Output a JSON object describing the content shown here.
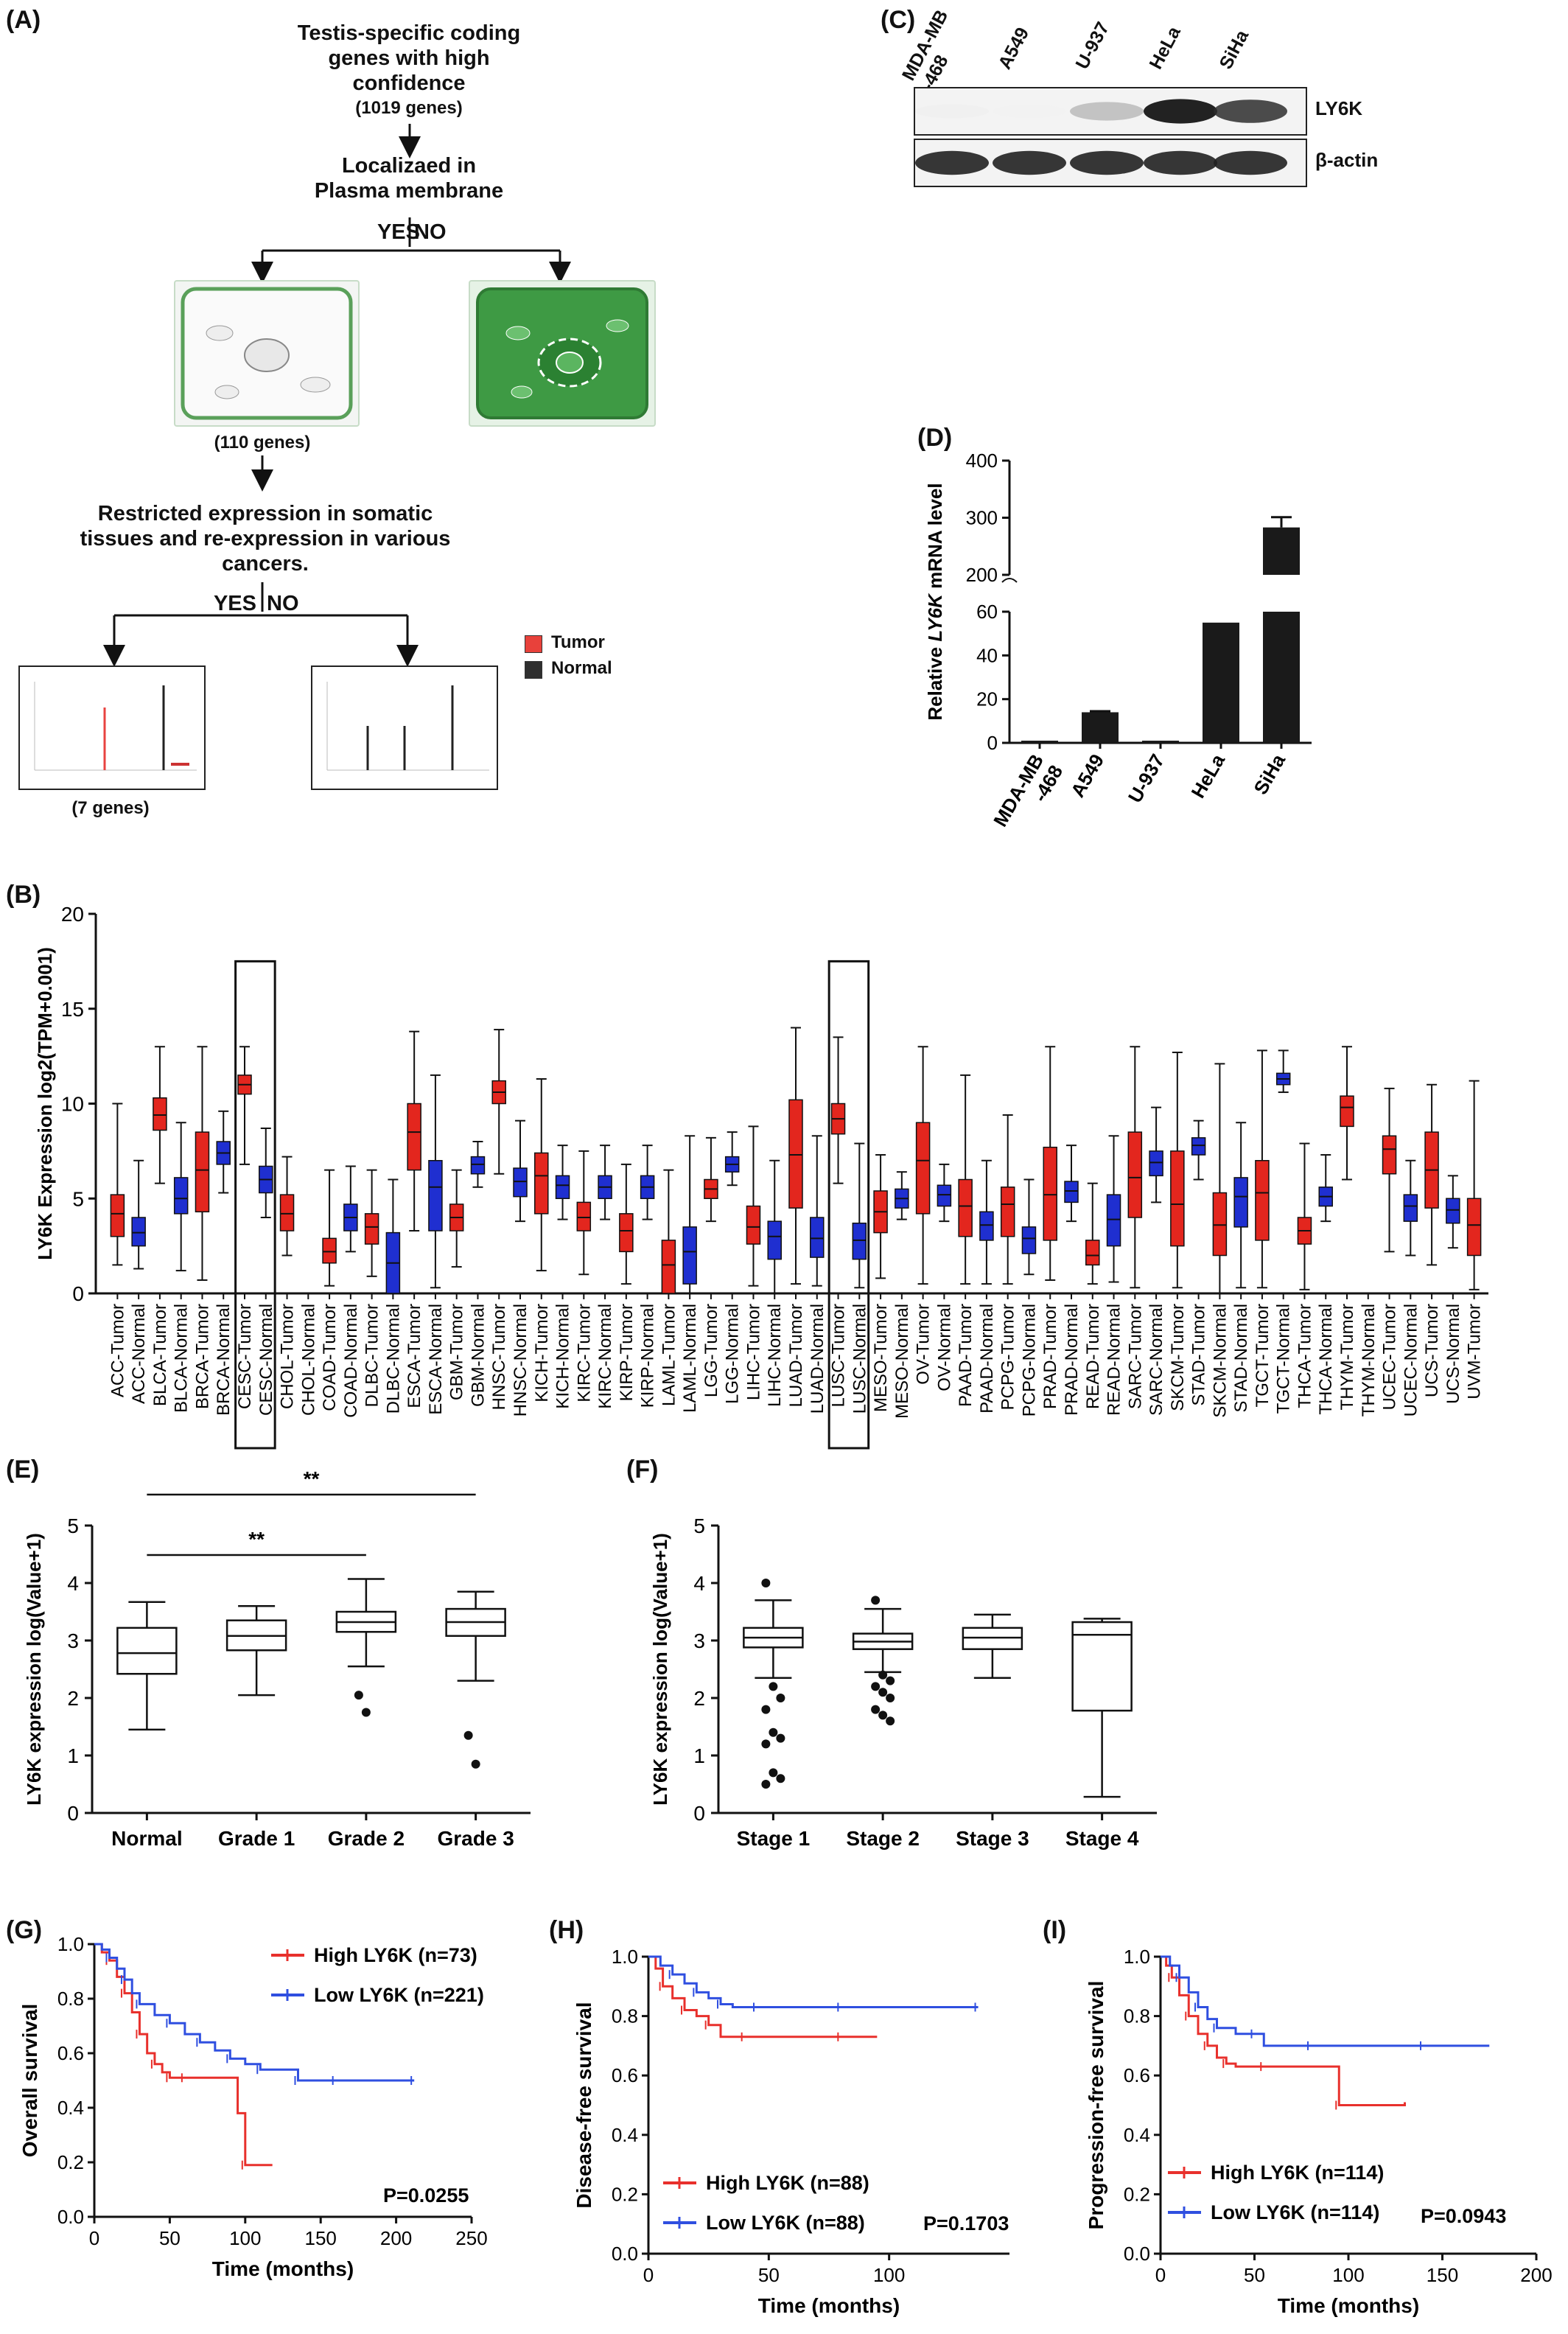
{
  "panels": {
    "A": "(A)",
    "B": "(B)",
    "C": "(C)",
    "D": "(D)",
    "E": "(E)",
    "F": "(F)",
    "G": "(G)",
    "H": "(H)",
    "I": "(I)"
  },
  "flowchart": {
    "step1_line1": "Testis-specific coding",
    "step1_line2": "genes with high",
    "step1_line3": "confidence",
    "step1_count": "(1019 genes)",
    "step2_line1": "Localizaed in",
    "step2_line2": "Plasma membrane",
    "yes": "YES",
    "no": "NO",
    "count2": "(110 genes)",
    "step3_line1": "Restricted expression in somatic",
    "step3_line2": "tissues and re-expression in various",
    "step3_line3": "cancers.",
    "count3": "(7 genes)",
    "legend_tumor": "Tumor",
    "legend_normal": "Normal",
    "tumor_color": "#e8413b",
    "normal_color": "#2f2f2f"
  },
  "western_blot": {
    "lanes": [
      "MDA-MB\n-468",
      "A549",
      "U-937",
      "HeLa",
      "SiHa"
    ],
    "lane_line1": [
      "MDA-MB",
      "A549",
      "U-937",
      "HeLa",
      "SiHa"
    ],
    "lane_line2": [
      "-468",
      "",
      "",
      "",
      ""
    ],
    "bands": [
      "LY6K",
      "β-actin"
    ],
    "ly6k_intensity": [
      0.05,
      0.0,
      0.45,
      0.95,
      0.85
    ],
    "actin_intensity": [
      0.9,
      0.9,
      0.9,
      0.9,
      0.9
    ]
  },
  "chart_data": [
    {
      "id": "D",
      "type": "bar",
      "ylabel_pre": "Relative ",
      "ylabel_italic": "LY6K",
      "ylabel_post": " mRNA level",
      "categories": [
        "MDA-MB\n-468",
        "A549",
        "U-937",
        "HeLa",
        "SiHa"
      ],
      "category_line1": [
        "MDA-MB",
        "A549",
        "U-937",
        "HeLa",
        "SiHa"
      ],
      "category_line2": [
        "-468",
        "",
        "",
        "",
        ""
      ],
      "values": [
        1,
        14,
        1,
        55,
        283
      ],
      "errors": [
        0,
        0.5,
        0,
        0,
        18
      ],
      "broken_axis": {
        "lower": [
          0,
          60
        ],
        "upper": [
          200,
          400
        ]
      },
      "lower_ticks": [
        0,
        20,
        40,
        60
      ],
      "upper_ticks": [
        200,
        300,
        400
      ],
      "bar_color": "#1a1a1a"
    },
    {
      "id": "B",
      "type": "box",
      "ylabel": "LY6K Expression log2(TPM+0.001)",
      "ylim": [
        0,
        20
      ],
      "yticks": [
        0,
        5,
        10,
        15,
        20
      ],
      "categories": [
        "ACC-Tumor",
        "ACC-Normal",
        "BLCA-Tumor",
        "BLCA-Normal",
        "BRCA-Tumor",
        "BRCA-Normal",
        "CESC-Tumor",
        "CESC-Normal",
        "CHOL-Tumor",
        "CHOL-Normal",
        "COAD-Tumor",
        "COAD-Normal",
        "DLBC-Tumor",
        "DLBC-Normal",
        "ESCA-Tumor",
        "ESCA-Normal",
        "GBM-Tumor",
        "GBM-Normal",
        "HNSC-Tumor",
        "HNSC-Normal",
        "KICH-Tumor",
        "KICH-Normal",
        "KIRC-Tumor",
        "KIRC-Normal",
        "KIRP-Tumor",
        "KIRP-Normal",
        "LAML-Tumor",
        "LAML-Normal",
        "LGG-Tumor",
        "LGG-Normal",
        "LIHC-Tumor",
        "LIHC-Normal",
        "LUAD-Tumor",
        "LUAD-Normal",
        "LUSC-Tumor",
        "LUSC-Normal",
        "MESO-Tumor",
        "MESO-Normal",
        "OV-Tumor",
        "OV-Normal",
        "PAAD-Tumor",
        "PAAD-Normal",
        "PCPG-Tumor",
        "PCPG-Normal",
        "PRAD-Tumor",
        "PRAD-Normal",
        "READ-Tumor",
        "READ-Normal",
        "SARC-Tumor",
        "SARC-Normal",
        "SKCM-Tumor",
        "STAD-Tumor",
        "SKCM-Normal",
        "STAD-Normal",
        "TGCT-Tumor",
        "TGCT-Normal",
        "THCA-Tumor",
        "THCA-Normal",
        "THYM-Tumor",
        "THYM-Normal",
        "UCEC-Tumor",
        "UCEC-Normal",
        "UCS-Tumor",
        "UCS-Normal",
        "UVM-Tumor"
      ],
      "colors": [
        "red",
        "blue",
        "red",
        "blue",
        "red",
        "blue",
        "red",
        "blue",
        "red",
        "none",
        "red",
        "blue",
        "red",
        "blue",
        "red",
        "blue",
        "red",
        "blue",
        "red",
        "blue",
        "red",
        "blue",
        "red",
        "blue",
        "red",
        "blue",
        "red",
        "blue",
        "red",
        "blue",
        "red",
        "blue",
        "red",
        "blue",
        "red",
        "blue",
        "red",
        "blue",
        "red",
        "blue",
        "red",
        "blue",
        "red",
        "blue",
        "red",
        "blue",
        "red",
        "blue",
        "red",
        "blue",
        "red",
        "blue",
        "red",
        "blue",
        "red",
        "blue",
        "red",
        "blue",
        "red",
        "none",
        "red",
        "blue",
        "red",
        "blue",
        "red"
      ],
      "medians": [
        4.2,
        3.2,
        9.4,
        5.0,
        6.5,
        7.4,
        11.0,
        6.0,
        4.2,
        0,
        2.2,
        4.0,
        3.5,
        1.6,
        8.5,
        5.6,
        4.0,
        6.8,
        10.6,
        5.9,
        6.2,
        5.7,
        4.0,
        5.6,
        3.3,
        5.6,
        1.5,
        2.2,
        5.5,
        6.8,
        3.5,
        3.0,
        7.3,
        2.9,
        9.2,
        2.8,
        4.3,
        5.0,
        7.0,
        5.2,
        4.6,
        3.6,
        4.7,
        2.9,
        5.2,
        5.4,
        2.0,
        3.9,
        6.1,
        6.9,
        4.7,
        7.8,
        3.6,
        5.1,
        5.3,
        11.3,
        3.3,
        5.1,
        9.8,
        0,
        7.6,
        4.6,
        6.5,
        4.4,
        3.6
      ],
      "q1": [
        3.0,
        2.5,
        8.6,
        4.2,
        4.3,
        6.8,
        10.5,
        5.3,
        3.3,
        0,
        1.6,
        3.3,
        2.6,
        0,
        6.5,
        3.3,
        3.3,
        6.3,
        10.0,
        5.1,
        4.2,
        5.0,
        3.3,
        5.0,
        2.2,
        5.0,
        0,
        0.5,
        5.0,
        6.4,
        2.6,
        1.8,
        4.5,
        1.9,
        8.4,
        1.8,
        3.2,
        4.5,
        4.2,
        4.6,
        3.0,
        2.8,
        3.0,
        2.1,
        2.8,
        4.8,
        1.5,
        2.5,
        4.0,
        6.2,
        2.5,
        7.3,
        2.0,
        3.5,
        2.8,
        11.0,
        2.6,
        4.6,
        8.8,
        0,
        6.3,
        3.8,
        4.5,
        3.7,
        2.0
      ],
      "q3": [
        5.2,
        4.0,
        10.3,
        6.1,
        8.5,
        8.0,
        11.5,
        6.7,
        5.2,
        0,
        2.9,
        4.7,
        4.2,
        3.2,
        10.0,
        7.0,
        4.7,
        7.2,
        11.2,
        6.6,
        7.4,
        6.2,
        4.8,
        6.2,
        4.2,
        6.2,
        2.8,
        3.5,
        6.0,
        7.2,
        4.6,
        3.8,
        10.2,
        4.0,
        10.0,
        3.7,
        5.4,
        5.5,
        9.0,
        5.7,
        6.0,
        4.3,
        5.6,
        3.5,
        7.7,
        5.9,
        2.8,
        5.2,
        8.5,
        7.5,
        7.5,
        8.2,
        5.3,
        6.1,
        7.0,
        11.6,
        4.0,
        5.6,
        10.4,
        0,
        8.3,
        5.2,
        8.5,
        5.0,
        5.0
      ],
      "mins": [
        1.5,
        1.3,
        5.8,
        1.2,
        0.7,
        5.3,
        6.8,
        4.0,
        2.0,
        0,
        0.4,
        2.2,
        0.9,
        0,
        3.3,
        0.3,
        1.4,
        5.6,
        6.3,
        3.8,
        1.2,
        3.9,
        1.0,
        3.9,
        0.5,
        3.9,
        0,
        0,
        3.8,
        5.7,
        0.4,
        0,
        0.5,
        0.4,
        5.8,
        0.3,
        0.8,
        3.9,
        0.5,
        3.8,
        0.5,
        0.5,
        0.5,
        1.0,
        0.7,
        3.8,
        0.5,
        0.6,
        0.3,
        4.8,
        0.3,
        6.0,
        0,
        0.3,
        0.3,
        10.6,
        0.2,
        3.8,
        6.0,
        0,
        2.2,
        2.0,
        1.5,
        2.4,
        0.2
      ],
      "maxs": [
        10.0,
        7.0,
        13.0,
        9.0,
        13.0,
        9.6,
        13.0,
        8.7,
        7.2,
        0,
        6.5,
        6.7,
        6.5,
        6.0,
        13.8,
        11.5,
        6.5,
        8.0,
        13.9,
        9.1,
        11.3,
        7.8,
        7.5,
        7.8,
        6.8,
        7.8,
        6.5,
        8.3,
        8.2,
        8.5,
        8.8,
        7.0,
        14.0,
        8.3,
        13.5,
        7.9,
        7.3,
        6.4,
        13.0,
        6.8,
        11.5,
        7.0,
        9.4,
        6.0,
        13.0,
        7.8,
        5.8,
        8.3,
        13.0,
        9.8,
        12.7,
        9.1,
        12.1,
        9.0,
        12.8,
        12.8,
        7.9,
        7.3,
        13.0,
        0,
        10.8,
        7.0,
        11.0,
        6.2,
        11.2
      ],
      "boxed_groups": [
        "CESC",
        "LUSC"
      ]
    },
    {
      "id": "E",
      "type": "box",
      "ylabel": "LY6K expression log(Value+1)",
      "ylim": [
        0,
        5
      ],
      "yticks": [
        0,
        1,
        2,
        3,
        4,
        5
      ],
      "categories": [
        "Normal",
        "Grade 1",
        "Grade 2",
        "Grade 3"
      ],
      "medians": [
        2.78,
        3.08,
        3.32,
        3.32
      ],
      "q1": [
        2.42,
        2.83,
        3.15,
        3.08
      ],
      "q3": [
        3.22,
        3.35,
        3.5,
        3.55
      ],
      "mins": [
        1.45,
        2.05,
        2.55,
        2.3
      ],
      "maxs": [
        3.67,
        3.6,
        4.07,
        3.85
      ],
      "outliers": [
        [],
        [],
        [
          2.05,
          1.75
        ],
        [
          1.35,
          0.85
        ]
      ],
      "significance": [
        {
          "from": "Normal",
          "to": "Grade 3",
          "label": "**"
        },
        {
          "from": "Normal",
          "to": "Grade 2",
          "label": "**"
        }
      ]
    },
    {
      "id": "F",
      "type": "box",
      "ylabel": "LY6K expression log(Value+1)",
      "ylim": [
        0,
        5
      ],
      "yticks": [
        0,
        1,
        2,
        3,
        4,
        5
      ],
      "categories": [
        "Stage 1",
        "Stage 2",
        "Stage 3",
        "Stage 4"
      ],
      "medians": [
        3.05,
        2.98,
        3.05,
        3.1
      ],
      "q1": [
        2.88,
        2.85,
        2.85,
        1.78
      ],
      "q3": [
        3.22,
        3.12,
        3.22,
        3.32
      ],
      "mins": [
        2.35,
        2.45,
        2.35,
        0.28
      ],
      "maxs": [
        3.7,
        3.55,
        3.45,
        3.38
      ],
      "outliers": [
        [
          4.0,
          2.2,
          2.0,
          1.8,
          1.4,
          1.3,
          1.2,
          0.7,
          0.6,
          0.5
        ],
        [
          3.7,
          2.4,
          2.3,
          2.2,
          2.1,
          2.0,
          1.8,
          1.7,
          1.6
        ],
        [],
        []
      ]
    },
    {
      "id": "G",
      "type": "line",
      "xlabel": "Time (months)",
      "ylabel": "Overall survival",
      "xlim": [
        0,
        250
      ],
      "ylim": [
        0,
        1
      ],
      "xticks": [
        0,
        50,
        100,
        150,
        200,
        250
      ],
      "yticks": [
        0.0,
        0.2,
        0.4,
        0.6,
        0.8,
        1.0
      ],
      "pvalue": "P=0.0255",
      "series": [
        {
          "name": "High LY6K (n=73)",
          "color": "#e8302c",
          "x": [
            0,
            5,
            10,
            15,
            20,
            25,
            30,
            35,
            40,
            45,
            50,
            55,
            60,
            95,
            100,
            118
          ],
          "y": [
            1.0,
            0.97,
            0.94,
            0.88,
            0.82,
            0.75,
            0.67,
            0.6,
            0.56,
            0.53,
            0.51,
            0.51,
            0.51,
            0.38,
            0.19,
            0.19
          ]
        },
        {
          "name": "Low LY6K (n=221)",
          "color": "#2f4fe0",
          "x": [
            0,
            5,
            10,
            15,
            20,
            25,
            30,
            40,
            50,
            60,
            70,
            80,
            90,
            100,
            110,
            120,
            135,
            140,
            160,
            180,
            212
          ],
          "y": [
            1.0,
            0.98,
            0.95,
            0.91,
            0.87,
            0.82,
            0.78,
            0.74,
            0.71,
            0.67,
            0.64,
            0.61,
            0.58,
            0.56,
            0.54,
            0.54,
            0.5,
            0.5,
            0.5,
            0.5,
            0.5
          ]
        }
      ]
    },
    {
      "id": "H",
      "type": "line",
      "xlabel": "Time (months)",
      "ylabel": "Disease-free survival",
      "xlim": [
        0,
        150
      ],
      "ylim": [
        0,
        1
      ],
      "xticks": [
        0,
        50,
        100
      ],
      "yticks": [
        0.0,
        0.2,
        0.4,
        0.6,
        0.8,
        1.0
      ],
      "pvalue": "P=0.1703",
      "series": [
        {
          "name": "High LY6K (n=88)",
          "color": "#e8302c",
          "x": [
            0,
            3,
            6,
            10,
            15,
            20,
            25,
            30,
            40,
            60,
            80,
            95
          ],
          "y": [
            1.0,
            0.96,
            0.9,
            0.86,
            0.82,
            0.8,
            0.77,
            0.73,
            0.73,
            0.73,
            0.73,
            0.73
          ]
        },
        {
          "name": "Low LY6K (n=88)",
          "color": "#2f4fe0",
          "x": [
            0,
            5,
            10,
            15,
            20,
            25,
            30,
            35,
            45,
            60,
            80,
            100,
            137
          ],
          "y": [
            1.0,
            0.97,
            0.94,
            0.91,
            0.88,
            0.86,
            0.84,
            0.83,
            0.83,
            0.83,
            0.83,
            0.83,
            0.83
          ]
        }
      ]
    },
    {
      "id": "I",
      "type": "line",
      "xlabel": "Time (months)",
      "ylabel": "Progression-free survival",
      "xlim": [
        0,
        200
      ],
      "ylim": [
        0,
        1
      ],
      "xticks": [
        0,
        50,
        100,
        150,
        200
      ],
      "yticks": [
        0.0,
        0.2,
        0.4,
        0.6,
        0.8,
        1.0
      ],
      "pvalue": "P=0.0943",
      "series": [
        {
          "name": "High LY6K (n=114)",
          "color": "#e8302c",
          "x": [
            0,
            3,
            6,
            10,
            15,
            20,
            25,
            30,
            35,
            40,
            55,
            70,
            95,
            130
          ],
          "y": [
            1.0,
            0.97,
            0.93,
            0.87,
            0.8,
            0.74,
            0.7,
            0.66,
            0.64,
            0.63,
            0.63,
            0.63,
            0.5,
            0.51
          ]
        },
        {
          "name": "Low LY6K (n=114)",
          "color": "#2f4fe0",
          "x": [
            0,
            5,
            10,
            15,
            20,
            25,
            30,
            40,
            50,
            55,
            80,
            100,
            140,
            175
          ],
          "y": [
            1.0,
            0.97,
            0.93,
            0.88,
            0.83,
            0.79,
            0.76,
            0.74,
            0.74,
            0.7,
            0.7,
            0.7,
            0.7,
            0.7
          ]
        }
      ]
    }
  ]
}
